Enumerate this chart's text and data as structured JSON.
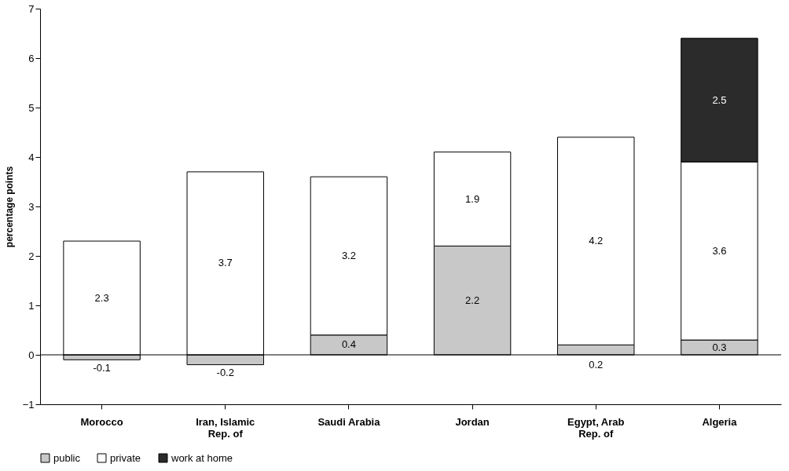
{
  "chart_data": {
    "type": "bar",
    "stacked": true,
    "ylabel": "percentage points",
    "categories": [
      "Morocco",
      "Iran, Islamic Rep. of",
      "Saudi Arabia",
      "Jordan",
      "Egypt, Arab Rep. of",
      "Algeria"
    ],
    "series": [
      {
        "name": "public",
        "color": "#c8c8c8",
        "values": [
          -0.1,
          -0.2,
          0.4,
          2.2,
          0.2,
          0.3
        ]
      },
      {
        "name": "private",
        "color": "#ffffff",
        "values": [
          2.3,
          3.7,
          3.2,
          1.9,
          4.2,
          3.6
        ]
      },
      {
        "name": "work at home",
        "color": "#2b2b2b",
        "values": [
          null,
          null,
          null,
          null,
          null,
          2.5
        ]
      }
    ],
    "ylim": [
      -1,
      7
    ],
    "yticks": [
      -1,
      0,
      1,
      2,
      3,
      4,
      5,
      6,
      7
    ],
    "grid": false,
    "ref_lines": [
      {
        "axis": "y",
        "value": 0
      }
    ],
    "legend": "bottom",
    "data_labels": true
  }
}
